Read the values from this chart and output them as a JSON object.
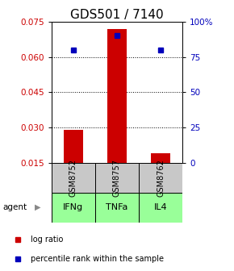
{
  "title": "GDS501 / 7140",
  "samples": [
    "GSM8752",
    "GSM8757",
    "GSM8762"
  ],
  "agents": [
    "IFNg",
    "TNFa",
    "IL4"
  ],
  "log_ratios": [
    0.029,
    0.072,
    0.019
  ],
  "percentile_ranks": [
    80,
    90,
    80
  ],
  "ylim_left": [
    0.015,
    0.075
  ],
  "ylim_right": [
    0,
    100
  ],
  "yticks_left": [
    0.015,
    0.03,
    0.045,
    0.06,
    0.075
  ],
  "yticks_right": [
    0,
    25,
    50,
    75,
    100
  ],
  "ytick_labels_right": [
    "0",
    "25",
    "50",
    "75",
    "100%"
  ],
  "bar_color": "#cc0000",
  "square_color": "#0000bb",
  "agent_bg_color": "#99ff99",
  "sample_bg_color": "#c8c8c8",
  "baseline": 0.015,
  "bar_width": 0.45,
  "left_tick_color": "#cc0000",
  "right_tick_color": "#0000bb",
  "title_fontsize": 11,
  "tick_fontsize": 7.5,
  "legend_fontsize": 7
}
